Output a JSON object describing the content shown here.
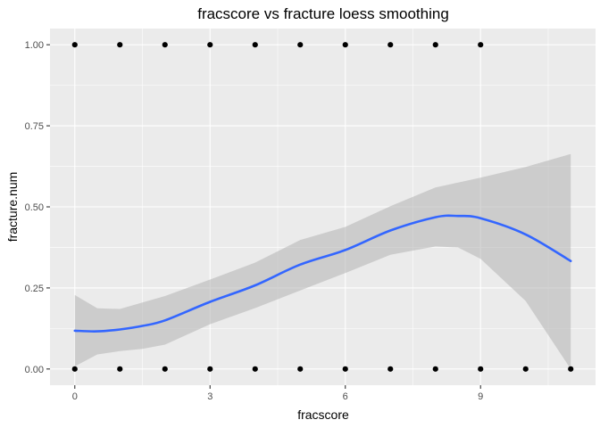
{
  "chart_data": {
    "type": "scatter",
    "title": "fracscore vs fracture loess smoothing",
    "xlabel": "fracscore",
    "ylabel": "fracture.num",
    "xlim": [
      -0.55,
      11.55
    ],
    "ylim": [
      -0.05,
      1.05
    ],
    "x_ticks": [
      0,
      3,
      6,
      9
    ],
    "x_tick_labels": [
      "0",
      "3",
      "6",
      "9"
    ],
    "y_ticks": [
      0,
      0.25,
      0.5,
      0.75,
      1
    ],
    "y_tick_labels": [
      "0.00",
      "0.25",
      "0.50",
      "0.75",
      "1.00"
    ],
    "grid": true,
    "background_color": "#ebebeb",
    "grid_color": "#ffffff",
    "point_color": "#000000",
    "line_color": "#3366ff",
    "ribbon_color": "#b3b3b3",
    "points": [
      {
        "x": 0,
        "y": 1
      },
      {
        "x": 1,
        "y": 1
      },
      {
        "x": 2,
        "y": 1
      },
      {
        "x": 3,
        "y": 1
      },
      {
        "x": 4,
        "y": 1
      },
      {
        "x": 5,
        "y": 1
      },
      {
        "x": 6,
        "y": 1
      },
      {
        "x": 7,
        "y": 1
      },
      {
        "x": 8,
        "y": 1
      },
      {
        "x": 9,
        "y": 1
      },
      {
        "x": 0,
        "y": 0
      },
      {
        "x": 1,
        "y": 0
      },
      {
        "x": 2,
        "y": 0
      },
      {
        "x": 3,
        "y": 0
      },
      {
        "x": 4,
        "y": 0
      },
      {
        "x": 5,
        "y": 0
      },
      {
        "x": 6,
        "y": 0
      },
      {
        "x": 7,
        "y": 0
      },
      {
        "x": 8,
        "y": 0
      },
      {
        "x": 9,
        "y": 0
      },
      {
        "x": 10,
        "y": 0
      },
      {
        "x": 11,
        "y": 0
      }
    ],
    "smooth": {
      "method": "loess",
      "x": [
        0,
        0.5,
        1,
        1.5,
        2,
        3,
        4,
        5,
        6,
        7,
        8,
        8.5,
        9,
        10,
        11
      ],
      "y": [
        0.118,
        0.116,
        0.122,
        0.133,
        0.15,
        0.207,
        0.258,
        0.322,
        0.367,
        0.427,
        0.468,
        0.472,
        0.465,
        0.415,
        0.333
      ],
      "lower": [
        0.008,
        0.045,
        0.055,
        0.062,
        0.075,
        0.138,
        0.188,
        0.242,
        0.296,
        0.352,
        0.378,
        0.375,
        0.34,
        0.21,
        0.0
      ],
      "upper": [
        0.228,
        0.187,
        0.185,
        0.205,
        0.225,
        0.276,
        0.328,
        0.398,
        0.438,
        0.502,
        0.56,
        0.575,
        0.59,
        0.623,
        0.663
      ]
    }
  }
}
